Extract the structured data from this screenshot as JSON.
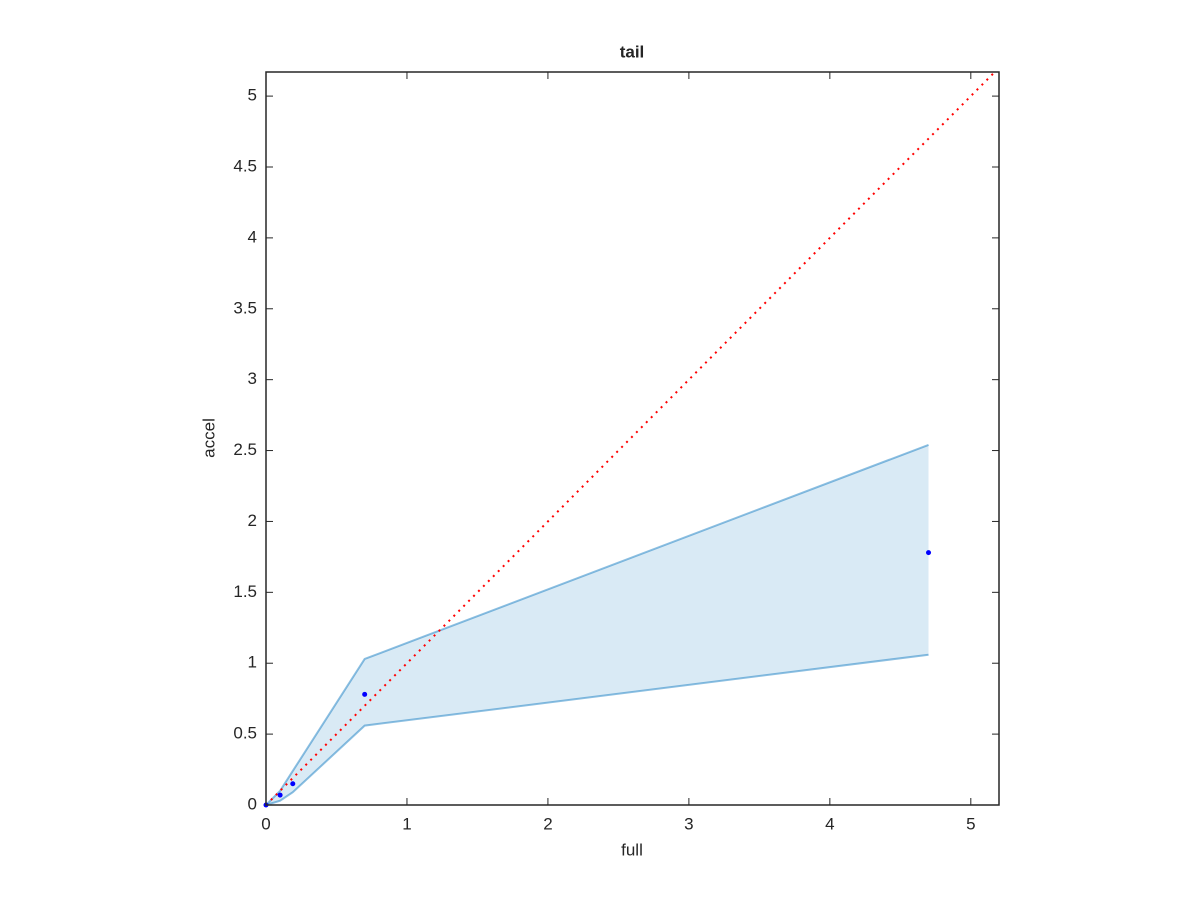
{
  "chart_data": {
    "type": "band-scatter",
    "title": "tail",
    "xlabel": "full",
    "ylabel": "accel",
    "xlim": [
      0,
      5.2
    ],
    "ylim": [
      0,
      5.17
    ],
    "xticks": [
      0,
      1,
      2,
      3,
      4,
      5
    ],
    "yticks": [
      0,
      0.5,
      1,
      1.5,
      2,
      2.5,
      3,
      3.5,
      4,
      4.5,
      5
    ],
    "band": {
      "x": [
        0,
        0.1,
        0.19,
        0.7,
        4.7
      ],
      "upper": [
        0,
        0.1,
        0.24,
        1.03,
        2.54
      ],
      "lower": [
        0,
        0.03,
        0.09,
        0.56,
        1.06
      ],
      "color": "#0072bd"
    },
    "points": {
      "x": [
        0,
        0.1,
        0.19,
        0.7,
        4.7
      ],
      "y": [
        0,
        0.07,
        0.15,
        0.78,
        1.78
      ],
      "color": "#0000ff"
    },
    "reference": {
      "x": [
        0,
        5.17
      ],
      "y": [
        0,
        5.17
      ],
      "color": "#ff0000"
    }
  }
}
